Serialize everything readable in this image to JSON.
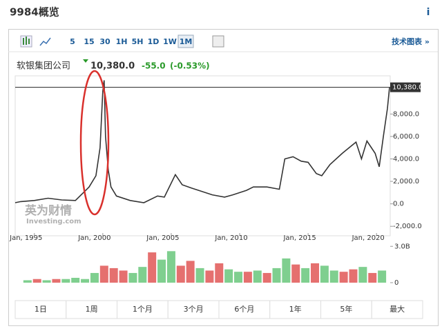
{
  "header": {
    "title": "9984概览",
    "info": "i"
  },
  "toolbar": {
    "intervals": [
      "5",
      "15",
      "30",
      "1H",
      "5H",
      "1D",
      "1W",
      "1M"
    ],
    "active_index": 7,
    "technical_chart": "技术图表 »"
  },
  "quote": {
    "name": "软银集团公司",
    "price": "10,380.0",
    "change": "-55.0",
    "change_pct": "(-0.53%)"
  },
  "chart_data": [
    {
      "type": "line",
      "color": "#333333",
      "x": [
        1993.6,
        1994,
        1995,
        1996,
        1997,
        1998,
        1999,
        1999.5,
        1999.8,
        2000.0,
        2000.1,
        2000.2,
        2000.4,
        2000.6,
        2001,
        2002,
        2003,
        2004,
        2004.5,
        2005.3,
        2005.8,
        2006.5,
        2007,
        2008,
        2008.9,
        2009.5,
        2010,
        2010.5,
        2011,
        2012,
        2012.9,
        2013.3,
        2013.9,
        2014.5,
        2015,
        2015.6,
        2016,
        2016.6,
        2017.5,
        2018,
        2018.5,
        2018.9,
        2019.3,
        2019.9,
        2020.2,
        2020.5,
        2020.8,
        2020.95
      ],
      "values": [
        100,
        200,
        300,
        500,
        350,
        300,
        1500,
        2500,
        5000,
        10000,
        11000,
        6000,
        3000,
        1500,
        700,
        300,
        100,
        700,
        600,
        2600,
        1700,
        1400,
        1200,
        800,
        600,
        800,
        1000,
        1200,
        1500,
        1500,
        1300,
        4000,
        4200,
        3800,
        3700,
        2700,
        2500,
        3500,
        4500,
        5000,
        5500,
        4000,
        5600,
        4500,
        3300,
        6000,
        8500,
        10380
      ],
      "xlim": [
        1993.6,
        2021.0
      ],
      "ylim": [
        -2600,
        11400
      ],
      "xticks": [
        {
          "value": 1995,
          "label": "Jan, 1995"
        },
        {
          "value": 2000,
          "label": "Jan, 2000"
        },
        {
          "value": 2005,
          "label": "Jan, 2005"
        },
        {
          "value": 2010,
          "label": "Jan, 2010"
        },
        {
          "value": 2015,
          "label": "Jan, 2015"
        },
        {
          "value": 2020,
          "label": "Jan, 2020"
        }
      ],
      "yticks": [
        {
          "value": -2000,
          "label": "-2,000.0"
        },
        {
          "value": 0,
          "label": "0.0"
        },
        {
          "value": 2000,
          "label": "2,000.0"
        },
        {
          "value": 4000,
          "label": "4,000.0"
        },
        {
          "value": 6000,
          "label": "6,000.0"
        },
        {
          "value": 8000,
          "label": "8,000.0"
        }
      ],
      "current": {
        "value": 10380,
        "label": "10,380.0"
      },
      "watermark": [
        "英为财情",
        "Investing.com"
      ]
    },
    {
      "type": "bar",
      "x": [
        1994.5,
        1995.2,
        1995.9,
        1996.6,
        1997.3,
        1998.0,
        1998.7,
        1999.4,
        2000.1,
        2000.8,
        2001.5,
        2002.2,
        2002.9,
        2003.6,
        2004.3,
        2005.0,
        2005.7,
        2006.4,
        2007.1,
        2007.8,
        2008.5,
        2009.2,
        2009.9,
        2010.6,
        2011.3,
        2012.0,
        2012.7,
        2013.4,
        2014.1,
        2014.8,
        2015.5,
        2016.2,
        2016.9,
        2017.6,
        2018.3,
        2019.0,
        2019.7,
        2020.4
      ],
      "values": [
        0.2,
        0.3,
        0.2,
        0.3,
        0.3,
        0.4,
        0.3,
        0.8,
        1.4,
        1.2,
        1.0,
        0.8,
        1.3,
        2.5,
        1.9,
        2.6,
        1.4,
        1.8,
        1.2,
        1.0,
        1.6,
        1.1,
        0.9,
        0.9,
        1.0,
        0.8,
        1.2,
        2.0,
        1.5,
        1.2,
        1.6,
        1.4,
        1.0,
        0.9,
        1.1,
        1.3,
        0.8,
        1.0
      ],
      "colors": [
        "#7fcf8f",
        "#e5706f",
        "#7fcf8f",
        "#e5706f",
        "#7fcf8f",
        "#7fcf8f",
        "#7fcf8f",
        "#7fcf8f",
        "#e5706f",
        "#e5706f",
        "#e5706f",
        "#7fcf8f",
        "#7fcf8f",
        "#e5706f",
        "#7fcf8f",
        "#7fcf8f",
        "#e5706f",
        "#e5706f",
        "#7fcf8f",
        "#e5706f",
        "#e5706f",
        "#7fcf8f",
        "#7fcf8f",
        "#e5706f",
        "#7fcf8f",
        "#e5706f",
        "#7fcf8f",
        "#7fcf8f",
        "#e5706f",
        "#7fcf8f",
        "#e5706f",
        "#7fcf8f",
        "#7fcf8f",
        "#e5706f",
        "#e5706f",
        "#7fcf8f",
        "#e5706f",
        "#7fcf8f"
      ],
      "ylim": [
        0,
        3.3
      ],
      "yticks": [
        0,
        {
          "value": 3,
          "label": "3.0B"
        }
      ]
    }
  ],
  "ranges": [
    "1日",
    "1周",
    "1个月",
    "3个月",
    "6个月",
    "1年",
    "5年",
    "最大"
  ]
}
